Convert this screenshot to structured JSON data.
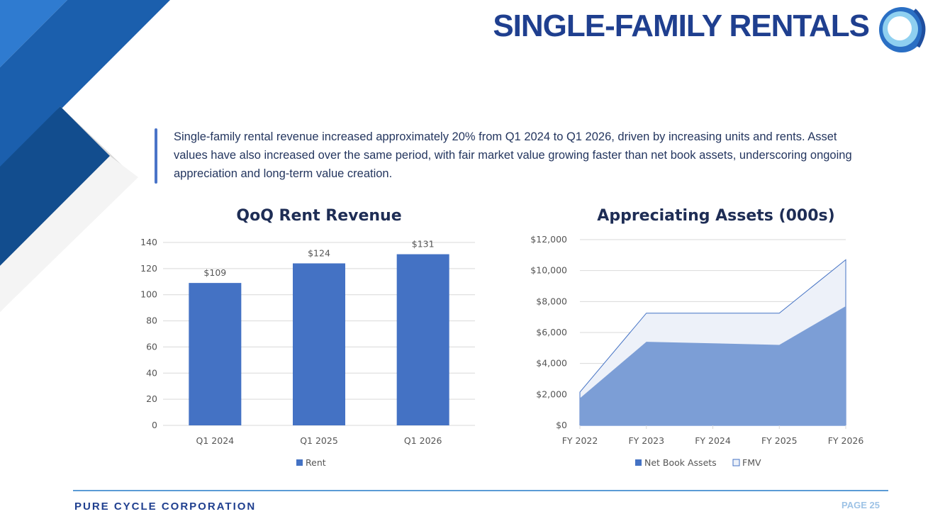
{
  "header": {
    "title": "SINGLE-FAMILY RENTALS",
    "logo": "pure-cycle-wave-logo"
  },
  "summary": "Single-family rental revenue increased approximately 20% from Q1 2024 to Q1 2026, driven by increasing units and rents. Asset values have also increased over the same period, with fair market value growing faster than net book assets, underscoring ongoing appreciation and long-term value creation.",
  "footer": {
    "company": "PURE CYCLE CORPORATION",
    "page": "PAGE 25"
  },
  "colors": {
    "brand": "#1f3f8f",
    "bar": "#4472c4",
    "nba": "#7c9ed6",
    "fmv": "#edf1f9"
  },
  "chart_data": [
    {
      "type": "bar",
      "title": "QoQ Rent Revenue",
      "categories": [
        "Q1 2024",
        "Q1 2025",
        "Q1 2026"
      ],
      "series": [
        {
          "name": "Rent",
          "values": [
            109,
            124,
            131
          ],
          "labels": [
            "$109",
            "$124",
            "$131"
          ]
        }
      ],
      "ylim": [
        0,
        140
      ],
      "yticks": [
        "0",
        "20",
        "40",
        "60",
        "80",
        "100",
        "120",
        "140"
      ],
      "grid": true,
      "legend": "bottom"
    },
    {
      "type": "area",
      "title": "Appreciating Assets (000s)",
      "categories": [
        "FY 2022",
        "FY 2023",
        "FY 2024",
        "FY 2025",
        "FY 2026"
      ],
      "series": [
        {
          "name": "Net Book Assets",
          "values": [
            1750,
            5400,
            5300,
            5200,
            7700
          ]
        },
        {
          "name": "FMV",
          "values": [
            2150,
            7250,
            7250,
            7250,
            10700
          ]
        }
      ],
      "ylim": [
        0,
        12000
      ],
      "yticks": [
        "$0",
        "$2,000",
        "$4,000",
        "$6,000",
        "$8,000",
        "$10,000",
        "$12,000"
      ],
      "grid": true,
      "legend": "bottom"
    }
  ]
}
